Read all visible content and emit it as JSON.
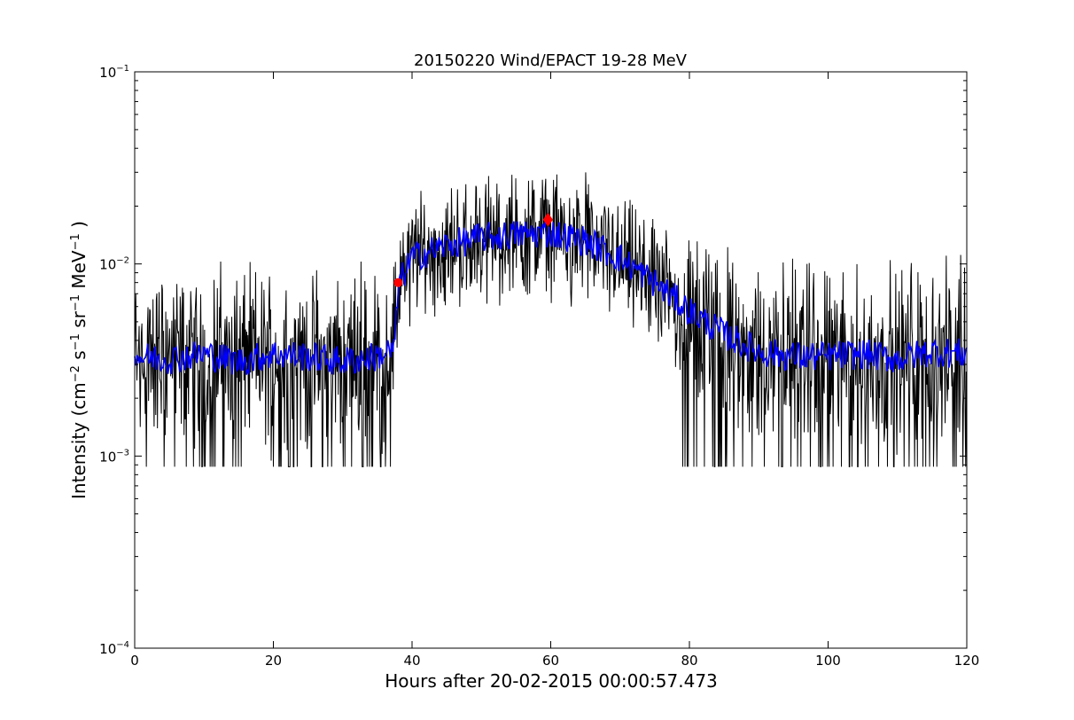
{
  "chart_data": {
    "type": "line",
    "title": "20150220 Wind/EPACT 19-28 MeV",
    "xlabel": "Hours after 20-02-2015 00:00:57.473",
    "ylabel": "Intensity (cm⁻² s⁻¹ sr⁻¹ MeV⁻¹)",
    "ylabel_parts": [
      {
        "text": "Intensity (cm",
        "sup": false
      },
      {
        "text": "−2",
        "sup": true
      },
      {
        "text": " s",
        "sup": false
      },
      {
        "text": "−1",
        "sup": true
      },
      {
        "text": " sr",
        "sup": false
      },
      {
        "text": "−1",
        "sup": true
      },
      {
        "text": " MeV",
        "sup": false
      },
      {
        "text": "−1",
        "sup": true
      },
      {
        "text": " )",
        "sup": false
      }
    ],
    "xlim": [
      0,
      120
    ],
    "ylim": [
      0.0001,
      0.1
    ],
    "yscale": "log",
    "grid": false,
    "x_ticks": [
      0,
      20,
      40,
      60,
      80,
      100,
      120
    ],
    "x_tick_labels": [
      "0",
      "20",
      "40",
      "60",
      "80",
      "100",
      "120"
    ],
    "y_ticks": [
      0.0001,
      0.001,
      0.01,
      0.1
    ],
    "y_tick_labels": [
      {
        "base": "10",
        "exp": "−4"
      },
      {
        "base": "10",
        "exp": "−3"
      },
      {
        "base": "10",
        "exp": "−2"
      },
      {
        "base": "10",
        "exp": "−1"
      }
    ],
    "series": [
      {
        "style": "raw",
        "color": "#000000",
        "floor": 0.00088,
        "envelope": {
          "x": [
            0,
            10,
            20,
            30,
            35,
            37.5,
            38,
            40,
            45,
            50,
            55,
            60,
            65,
            70,
            75,
            80,
            85,
            90,
            100,
            110,
            120
          ],
          "y": [
            0.0033,
            0.0034,
            0.0033,
            0.0032,
            0.0033,
            0.0036,
            0.0075,
            0.0105,
            0.0122,
            0.0135,
            0.014,
            0.0142,
            0.013,
            0.0105,
            0.0078,
            0.0055,
            0.0042,
            0.0034,
            0.0033,
            0.0033,
            0.0034
          ]
        }
      },
      {
        "style": "smoothed",
        "color": "#0000ff",
        "x": [
          0,
          5,
          10,
          15,
          20,
          25,
          30,
          35,
          37.5,
          38,
          40,
          45,
          50,
          55,
          60,
          65,
          70,
          75,
          80,
          85,
          90,
          95,
          100,
          105,
          110,
          115,
          120
        ],
        "y": [
          0.0033,
          0.0032,
          0.0034,
          0.0031,
          0.0034,
          0.0033,
          0.0031,
          0.0033,
          0.0036,
          0.0078,
          0.0108,
          0.0125,
          0.0137,
          0.0142,
          0.0145,
          0.0132,
          0.0107,
          0.008,
          0.0057,
          0.0043,
          0.0035,
          0.0033,
          0.0033,
          0.0034,
          0.0032,
          0.0035,
          0.0034
        ]
      }
    ],
    "markers": [
      {
        "x": 38,
        "y": 0.008,
        "color": "#ff0000",
        "shape": "circle"
      },
      {
        "x": 59.6,
        "y": 0.017,
        "color": "#ff0000",
        "shape": "diamond"
      }
    ]
  }
}
